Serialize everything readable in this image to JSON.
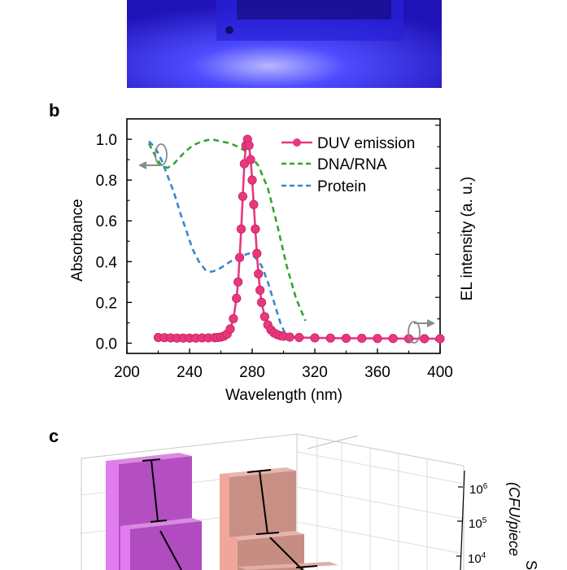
{
  "panels": {
    "b": "b",
    "c": "c"
  },
  "colors": {
    "duv": "#e8387d",
    "dna": "#2fa82f",
    "protein": "#3a86cf",
    "arrow": "#8a8a8a",
    "bar_magenta": "#b44fc1",
    "bar_salmon": "#c88f85"
  },
  "chart_data": [
    {
      "panel": "b",
      "type": "line",
      "xlabel": "Wavelength (nm)",
      "ylabel": "Absorbance",
      "y2label": "EL intensity (a. u.)",
      "xlim": [
        200,
        400
      ],
      "ylim": [
        -0.05,
        1.1
      ],
      "xticks": [
        "200",
        "240",
        "280",
        "320",
        "360",
        "400"
      ],
      "yticks": [
        "0.0",
        "0.2",
        "0.4",
        "0.6",
        "0.8",
        "1.0"
      ],
      "legend_position": "top-right",
      "series": [
        {
          "name": "DUV emission",
          "style": "solid-markers",
          "color": "#e8387d",
          "x": [
            220,
            224,
            228,
            232,
            236,
            240,
            244,
            248,
            252,
            256,
            258,
            260,
            262,
            264,
            266,
            268,
            270,
            271,
            272,
            273,
            274,
            275,
            276,
            277,
            278,
            279,
            280,
            281,
            282,
            283,
            284,
            285,
            286,
            288,
            290,
            292,
            294,
            296,
            298,
            300,
            304,
            310,
            320,
            330,
            340,
            350,
            360,
            370,
            380,
            390,
            400
          ],
          "y": [
            0.028,
            0.027,
            0.026,
            0.025,
            0.025,
            0.025,
            0.025,
            0.026,
            0.026,
            0.027,
            0.028,
            0.03,
            0.035,
            0.045,
            0.07,
            0.12,
            0.22,
            0.3,
            0.42,
            0.56,
            0.72,
            0.88,
            0.97,
            1.0,
            0.97,
            0.9,
            0.8,
            0.68,
            0.56,
            0.44,
            0.34,
            0.26,
            0.2,
            0.13,
            0.09,
            0.065,
            0.05,
            0.042,
            0.037,
            0.034,
            0.03,
            0.028,
            0.026,
            0.025,
            0.024,
            0.024,
            0.023,
            0.023,
            0.022,
            0.022,
            0.022
          ]
        },
        {
          "name": "DNA/RNA",
          "style": "dashed",
          "color": "#2fa82f",
          "x": [
            214,
            218,
            222,
            226,
            230,
            236,
            242,
            248,
            254,
            260,
            266,
            272,
            278,
            284,
            290,
            296,
            302,
            308,
            314
          ],
          "y": [
            0.98,
            0.92,
            0.87,
            0.86,
            0.88,
            0.93,
            0.97,
            0.99,
            1.0,
            0.99,
            0.98,
            0.96,
            0.93,
            0.87,
            0.76,
            0.58,
            0.38,
            0.22,
            0.11
          ]
        },
        {
          "name": "Protein",
          "style": "dashed",
          "color": "#3a86cf",
          "x": [
            214,
            218,
            222,
            226,
            230,
            234,
            238,
            242,
            246,
            250,
            254,
            258,
            262,
            266,
            270,
            274,
            278,
            282,
            286,
            290,
            294,
            298,
            302
          ],
          "y": [
            0.99,
            0.96,
            0.9,
            0.82,
            0.74,
            0.64,
            0.55,
            0.46,
            0.4,
            0.36,
            0.35,
            0.36,
            0.38,
            0.4,
            0.42,
            0.43,
            0.44,
            0.42,
            0.38,
            0.3,
            0.2,
            0.1,
            0.03
          ]
        }
      ]
    },
    {
      "panel": "c",
      "type": "bar",
      "ylabel_partial": "(CFU/piece",
      "ylabel_partial2": "S",
      "yscale": "log",
      "yticks": [
        "10",
        "10",
        "10"
      ],
      "ytick_exponents": [
        "6",
        "5",
        "4"
      ]
    }
  ]
}
